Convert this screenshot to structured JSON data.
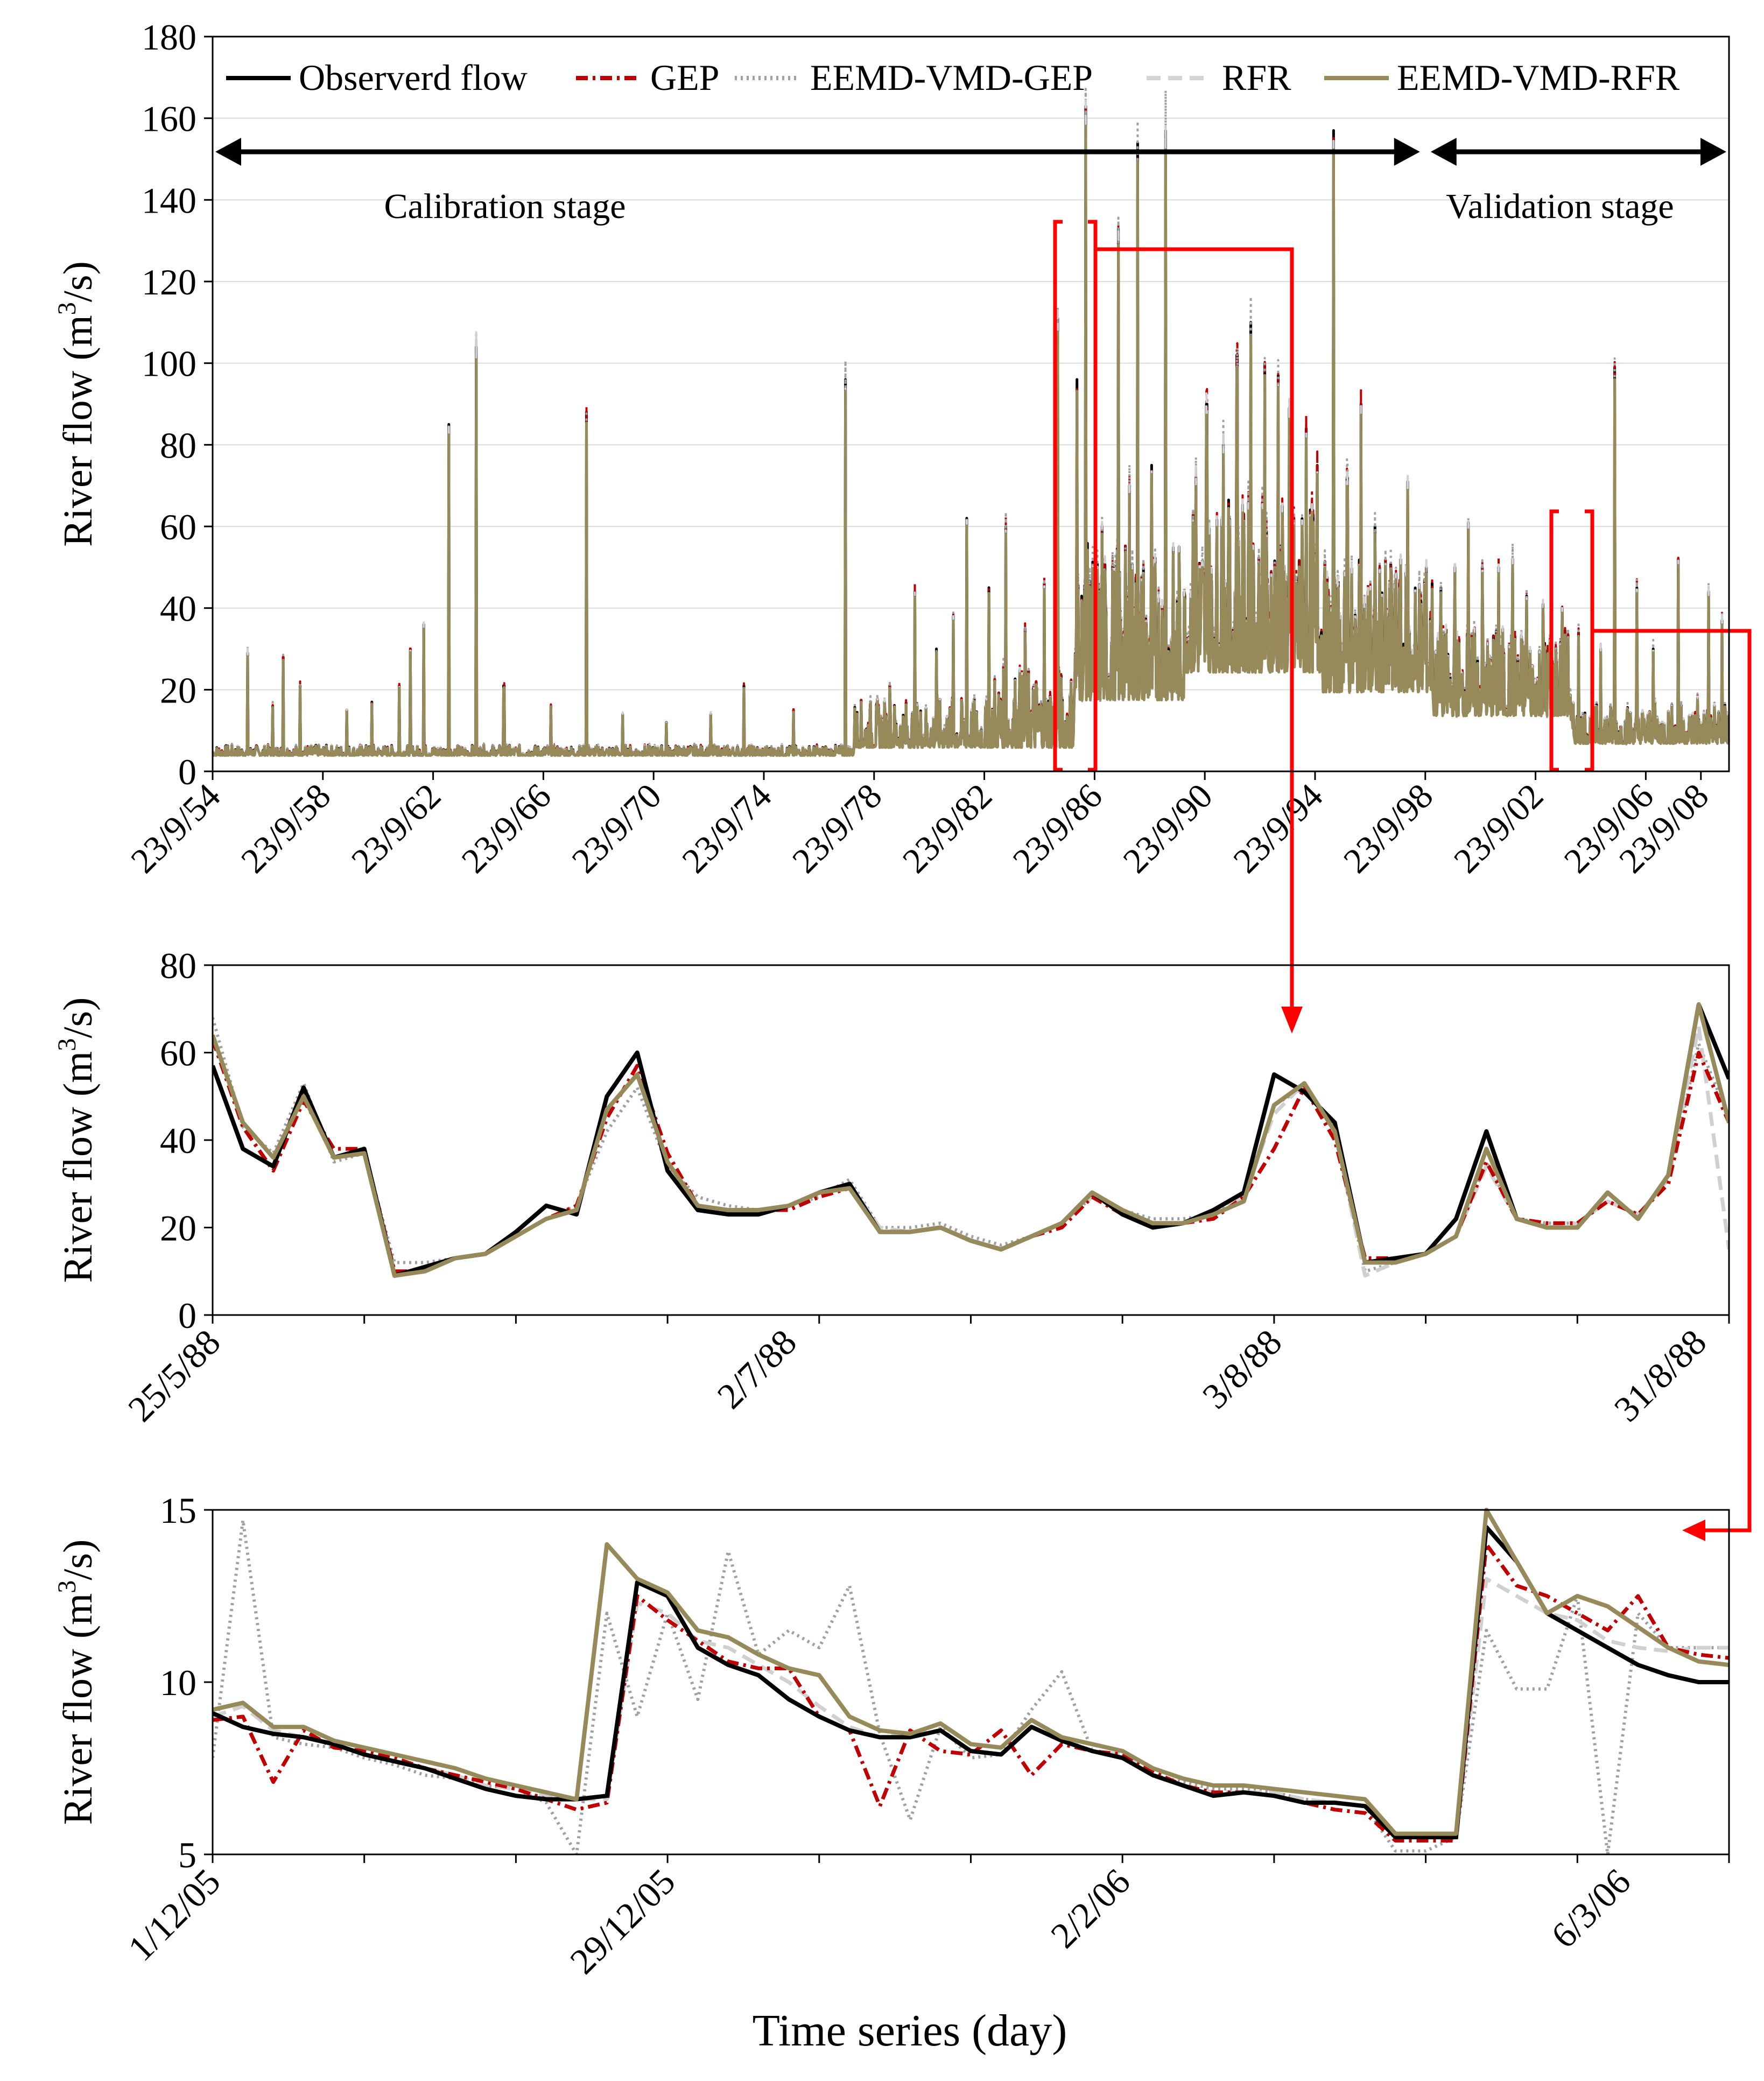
{
  "legend": [
    {
      "name": "Observerd flow",
      "color": "#000000",
      "dash": "solid"
    },
    {
      "name": "GEP",
      "color": "#c00000",
      "dash": "dashdot"
    },
    {
      "name": "EEMD-VMD-GEP",
      "color": "#a0a0a0",
      "dash": "dotted"
    },
    {
      "name": "RFR",
      "color": "#d4d4d4",
      "dash": "dashed"
    },
    {
      "name": "EEMD-VMD-RFR",
      "color": "#978a5a",
      "dash": "solid"
    }
  ],
  "colors": {
    "observed": "#000000",
    "gep": "#c00000",
    "eemd_gep": "#a0a0a0",
    "rfr": "#d0d0d0",
    "eemd_rfr": "#978a5a",
    "annotation": "#ff0000"
  },
  "top": {
    "stage_labels": {
      "calibration": "Calibration stage",
      "validation": "Validation stage"
    }
  },
  "xlabel": "Time series (day)",
  "chart_data": [
    {
      "type": "line",
      "title": "",
      "ylabel": "River flow (m3/s)",
      "ylabel_main": "River flow (m",
      "ylabel_sup": "3",
      "ylabel_tail": "/s)",
      "ylim": [
        0,
        180
      ],
      "yticks": [
        0,
        20,
        40,
        60,
        80,
        100,
        120,
        140,
        160,
        180
      ],
      "grid": true,
      "legend_position": "top",
      "x_tick_labels": [
        "23/9/54",
        "23/9/58",
        "23/9/62",
        "23/9/66",
        "23/9/70",
        "23/9/74",
        "23/9/78",
        "23/9/82",
        "23/9/86",
        "23/9/90",
        "23/9/94",
        "23/9/98",
        "23/9/02",
        "23/9/06",
        "23/9/08"
      ],
      "x_start": 1954.73,
      "x_end": 2009.75,
      "x_tick_positions": [
        1954.73,
        1958.73,
        1962.73,
        1966.73,
        1970.73,
        1974.73,
        1978.73,
        1982.73,
        1986.73,
        1990.73,
        1994.73,
        1998.73,
        2002.73,
        2006.73,
        2008.73
      ],
      "calibration_range": [
        1954.73,
        1998.73
      ],
      "validation_range": [
        1998.73,
        2009.75
      ],
      "peaks": [
        {
          "x": 1956.0,
          "y": 29
        },
        {
          "x": 1956.9,
          "y": 16
        },
        {
          "x": 1957.3,
          "y": 28
        },
        {
          "x": 1957.9,
          "y": 21
        },
        {
          "x": 1959.6,
          "y": 15
        },
        {
          "x": 1960.5,
          "y": 17
        },
        {
          "x": 1961.5,
          "y": 21
        },
        {
          "x": 1961.9,
          "y": 30
        },
        {
          "x": 1962.4,
          "y": 36
        },
        {
          "x": 1963.3,
          "y": 85
        },
        {
          "x": 1964.3,
          "y": 104
        },
        {
          "x": 1965.3,
          "y": 21
        },
        {
          "x": 1967.0,
          "y": 16
        },
        {
          "x": 1968.3,
          "y": 88
        },
        {
          "x": 1969.6,
          "y": 14
        },
        {
          "x": 1971.2,
          "y": 12
        },
        {
          "x": 1972.8,
          "y": 14
        },
        {
          "x": 1974.0,
          "y": 21
        },
        {
          "x": 1975.8,
          "y": 15
        },
        {
          "x": 1977.7,
          "y": 96
        },
        {
          "x": 1979.3,
          "y": 21
        },
        {
          "x": 1980.2,
          "y": 44
        },
        {
          "x": 1981.0,
          "y": 30
        },
        {
          "x": 1981.6,
          "y": 38
        },
        {
          "x": 1982.1,
          "y": 62
        },
        {
          "x": 1982.9,
          "y": 45
        },
        {
          "x": 1983.5,
          "y": 60
        },
        {
          "x": 1984.2,
          "y": 35
        },
        {
          "x": 1984.9,
          "y": 46
        },
        {
          "x": 1985.4,
          "y": 111
        },
        {
          "x": 1986.1,
          "y": 96
        },
        {
          "x": 1986.4,
          "y": 163
        },
        {
          "x": 1987.0,
          "y": 60
        },
        {
          "x": 1987.6,
          "y": 133
        },
        {
          "x": 1988.0,
          "y": 70
        },
        {
          "x": 1988.3,
          "y": 154
        },
        {
          "x": 1988.8,
          "y": 75
        },
        {
          "x": 1989.3,
          "y": 157
        },
        {
          "x": 1989.8,
          "y": 55
        },
        {
          "x": 1990.4,
          "y": 72
        },
        {
          "x": 1990.8,
          "y": 90
        },
        {
          "x": 1991.4,
          "y": 80
        },
        {
          "x": 1991.9,
          "y": 102
        },
        {
          "x": 1992.4,
          "y": 110
        },
        {
          "x": 1992.9,
          "y": 100
        },
        {
          "x": 1993.4,
          "y": 97
        },
        {
          "x": 1993.8,
          "y": 89
        },
        {
          "x": 1994.4,
          "y": 84
        },
        {
          "x": 1994.8,
          "y": 75
        },
        {
          "x": 1995.4,
          "y": 157
        },
        {
          "x": 1995.9,
          "y": 72
        },
        {
          "x": 1996.4,
          "y": 90
        },
        {
          "x": 1996.9,
          "y": 60
        },
        {
          "x": 1997.5,
          "y": 48
        },
        {
          "x": 1998.1,
          "y": 71
        },
        {
          "x": 1998.7,
          "y": 47
        },
        {
          "x": 1999.3,
          "y": 45
        },
        {
          "x": 1999.8,
          "y": 50
        },
        {
          "x": 2000.3,
          "y": 61
        },
        {
          "x": 2000.8,
          "y": 50
        },
        {
          "x": 2001.4,
          "y": 50
        },
        {
          "x": 2001.9,
          "y": 52
        },
        {
          "x": 2002.4,
          "y": 43
        },
        {
          "x": 2003.0,
          "y": 41
        },
        {
          "x": 2003.7,
          "y": 40
        },
        {
          "x": 2004.3,
          "y": 34
        },
        {
          "x": 2005.1,
          "y": 30
        },
        {
          "x": 2005.6,
          "y": 99
        },
        {
          "x": 2006.4,
          "y": 45
        },
        {
          "x": 2007.0,
          "y": 30
        },
        {
          "x": 2007.9,
          "y": 52
        },
        {
          "x": 2008.6,
          "y": 18
        },
        {
          "x": 2009.0,
          "y": 44
        },
        {
          "x": 2009.5,
          "y": 37
        }
      ]
    },
    {
      "type": "line",
      "ylabel": "River flow (m3/s)",
      "ylabel_main": "River flow (m",
      "ylabel_sup": "3",
      "ylabel_tail": "/s)",
      "ylim": [
        0,
        80
      ],
      "yticks": [
        0,
        20,
        40,
        60,
        80
      ],
      "grid": false,
      "x_start": 0,
      "x_end": 100,
      "x_ticks": [
        0,
        10,
        20,
        30,
        40,
        50,
        60,
        70,
        80,
        90,
        100
      ],
      "x_tick_labels": [
        {
          "label": "25/5/88",
          "x": 0
        },
        {
          "label": "2/7/88",
          "x": 38
        },
        {
          "label": "3/8/88",
          "x": 70
        },
        {
          "label": "31/8/88",
          "x": 98
        }
      ],
      "x": [
        0,
        2,
        4,
        6,
        8,
        10,
        12,
        14,
        16,
        18,
        20,
        22,
        24,
        26,
        28,
        30,
        32,
        34,
        36,
        38,
        40,
        42,
        44,
        46,
        48,
        50,
        52,
        54,
        56,
        58,
        60,
        62,
        64,
        66,
        68,
        70,
        72,
        74,
        76,
        78,
        80,
        82,
        84,
        86,
        88,
        90,
        92,
        94,
        96,
        98,
        100
      ],
      "series": [
        {
          "name": "Observerd flow",
          "values": [
            57,
            38,
            34,
            52,
            36,
            38,
            9,
            11,
            13,
            14,
            19,
            25,
            23,
            50,
            60,
            33,
            24,
            23,
            23,
            25,
            28,
            30,
            19,
            19,
            20,
            17,
            15,
            18,
            21,
            28,
            23,
            20,
            21,
            24,
            28,
            55,
            51,
            44,
            12,
            13,
            14,
            22,
            42,
            22,
            20,
            20,
            28,
            22,
            32,
            71,
            54
          ]
        },
        {
          "name": "GEP",
          "values": [
            63,
            43,
            33,
            49,
            38,
            38,
            10,
            10,
            13,
            14,
            18,
            22,
            25,
            45,
            57,
            37,
            25,
            24,
            24,
            24,
            27,
            29,
            19,
            19,
            20,
            17,
            15,
            18,
            20,
            27,
            23,
            21,
            21,
            22,
            27,
            38,
            52,
            40,
            13,
            13,
            14,
            18,
            35,
            22,
            21,
            21,
            26,
            23,
            30,
            60,
            44
          ]
        },
        {
          "name": "EEMD-VMD-GEP",
          "values": [
            68,
            43,
            37,
            53,
            35,
            37,
            12,
            12,
            13,
            14,
            18,
            22,
            25,
            42,
            52,
            34,
            27,
            25,
            24,
            25,
            27,
            31,
            20,
            20,
            21,
            18,
            16,
            18,
            21,
            27,
            24,
            22,
            22,
            23,
            27,
            48,
            52,
            42,
            10,
            12,
            14,
            18,
            35,
            22,
            21,
            21,
            26,
            23,
            31,
            62,
            45
          ]
        },
        {
          "name": "RFR",
          "values": [
            64,
            44,
            36,
            50,
            36,
            37,
            10,
            10,
            13,
            14,
            18,
            22,
            24,
            47,
            55,
            35,
            25,
            24,
            24,
            25,
            28,
            30,
            20,
            19,
            20,
            17,
            15,
            18,
            21,
            27,
            24,
            21,
            21,
            23,
            27,
            46,
            53,
            42,
            9,
            12,
            14,
            18,
            34,
            22,
            20,
            21,
            26,
            23,
            31,
            66,
            15
          ]
        },
        {
          "name": "EEMD-VMD-RFR",
          "values": [
            64,
            44,
            36,
            50,
            36,
            37,
            9,
            10,
            13,
            14,
            18,
            22,
            24,
            47,
            55,
            35,
            25,
            24,
            24,
            25,
            28,
            29,
            19,
            19,
            20,
            17,
            15,
            18,
            21,
            28,
            24,
            21,
            21,
            23,
            26,
            48,
            53,
            42,
            12,
            12,
            14,
            18,
            38,
            22,
            20,
            20,
            28,
            22,
            32,
            71,
            44
          ]
        }
      ]
    },
    {
      "type": "line",
      "ylabel": "River flow (m3/s)",
      "ylabel_main": "River flow (m",
      "ylabel_sup": "3",
      "ylabel_tail": "/s)",
      "ylim": [
        5,
        15
      ],
      "yticks": [
        5,
        10,
        15
      ],
      "grid": false,
      "x_start": 0,
      "x_end": 100,
      "x_ticks": [
        0,
        10,
        20,
        30,
        40,
        50,
        60,
        70,
        80,
        90,
        100
      ],
      "x_tick_labels": [
        {
          "label": "1/12/05",
          "x": 0
        },
        {
          "label": "29/12/05",
          "x": 30
        },
        {
          "label": "2/2/06",
          "x": 60
        },
        {
          "label": "6/3/06",
          "x": 93
        }
      ],
      "x": [
        0,
        2,
        4,
        6,
        8,
        10,
        12,
        14,
        16,
        18,
        20,
        22,
        24,
        26,
        28,
        30,
        32,
        34,
        36,
        38,
        40,
        42,
        44,
        46,
        48,
        50,
        52,
        54,
        56,
        58,
        60,
        62,
        64,
        66,
        68,
        70,
        72,
        74,
        76,
        78,
        80,
        82,
        84,
        86,
        88,
        90,
        92,
        94,
        96,
        98,
        100
      ],
      "series": [
        {
          "name": "Observerd flow",
          "values": [
            9.1,
            8.7,
            8.5,
            8.4,
            8.2,
            7.9,
            7.7,
            7.5,
            7.2,
            6.9,
            6.7,
            6.6,
            6.6,
            6.7,
            12.9,
            12.5,
            11.0,
            10.5,
            10.2,
            9.5,
            9.0,
            8.6,
            8.4,
            8.4,
            8.6,
            8.0,
            7.9,
            8.7,
            8.3,
            8.0,
            7.8,
            7.3,
            7.0,
            6.7,
            6.8,
            6.7,
            6.5,
            6.5,
            6.4,
            5.5,
            5.5,
            5.5,
            14.5,
            13.5,
            12.0,
            11.5,
            11.0,
            10.5,
            10.2,
            10.0,
            10.0
          ]
        },
        {
          "name": "GEP",
          "values": [
            8.9,
            9.0,
            7.1,
            8.6,
            8.1,
            8.0,
            7.8,
            7.5,
            7.3,
            7.1,
            6.9,
            6.6,
            6.3,
            6.5,
            12.5,
            11.8,
            11.2,
            10.6,
            10.4,
            10.4,
            9.0,
            8.6,
            6.4,
            8.6,
            8.0,
            7.9,
            8.6,
            7.3,
            8.2,
            8.0,
            7.9,
            7.4,
            7.0,
            6.8,
            6.8,
            6.7,
            6.5,
            6.3,
            6.2,
            5.4,
            5.4,
            5.4,
            14.0,
            12.8,
            12.5,
            12.0,
            11.5,
            12.5,
            11.0,
            10.8,
            10.7
          ]
        },
        {
          "name": "EEMD-VMD-GEP",
          "values": [
            7.8,
            14.7,
            8.4,
            8.2,
            8.1,
            7.8,
            7.6,
            7.3,
            7.2,
            7.0,
            6.9,
            6.5,
            5.0,
            12.0,
            9.0,
            12.0,
            9.5,
            13.8,
            10.8,
            11.5,
            11.0,
            12.8,
            8.5,
            6.0,
            8.7,
            7.8,
            7.9,
            9.2,
            10.3,
            8.0,
            7.8,
            7.3,
            7.1,
            6.9,
            6.9,
            6.8,
            6.6,
            6.5,
            6.4,
            5.1,
            5.1,
            5.5,
            11.5,
            9.8,
            9.8,
            12.5,
            5.0,
            12.0,
            11.0,
            11.0,
            11.0
          ]
        },
        {
          "name": "RFR",
          "values": [
            9.0,
            9.3,
            8.6,
            8.4,
            8.2,
            7.9,
            7.7,
            7.5,
            7.3,
            7.0,
            6.9,
            6.7,
            6.6,
            6.6,
            12.3,
            12.0,
            11.2,
            11.0,
            10.5,
            10.0,
            9.3,
            8.7,
            8.4,
            8.5,
            8.6,
            8.0,
            7.9,
            8.7,
            8.4,
            8.0,
            7.9,
            7.3,
            7.0,
            6.8,
            6.8,
            6.8,
            6.6,
            6.5,
            6.4,
            5.5,
            5.5,
            5.5,
            13.0,
            12.5,
            12.0,
            11.8,
            11.2,
            11.0,
            10.9,
            11.0,
            11.0
          ]
        },
        {
          "name": "EEMD-VMD-RFR",
          "values": [
            9.2,
            9.4,
            8.7,
            8.7,
            8.3,
            8.1,
            7.9,
            7.7,
            7.5,
            7.2,
            7.0,
            6.8,
            6.6,
            14.0,
            13.0,
            12.6,
            11.5,
            11.3,
            10.8,
            10.4,
            10.2,
            9.0,
            8.6,
            8.5,
            8.8,
            8.2,
            8.1,
            8.9,
            8.4,
            8.2,
            8.0,
            7.5,
            7.2,
            7.0,
            7.0,
            6.9,
            6.8,
            6.7,
            6.6,
            5.6,
            5.6,
            5.6,
            15.0,
            13.5,
            12.0,
            12.5,
            12.2,
            11.6,
            11.0,
            10.6,
            10.5
          ]
        }
      ]
    }
  ]
}
